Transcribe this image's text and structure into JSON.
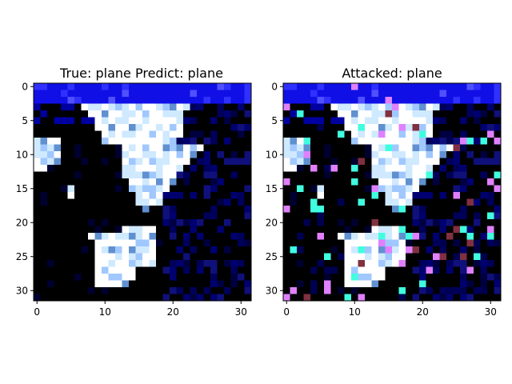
{
  "chart_data": [
    {
      "type": "heatmap",
      "title": "True: plane  Predict: plane",
      "xlabel": "",
      "ylabel": "",
      "xlim": [
        -0.5,
        31.5
      ],
      "ylim": [
        31.5,
        -0.5
      ],
      "xticks": [
        0,
        10,
        20,
        30
      ],
      "yticks": [
        0,
        5,
        10,
        15,
        20,
        25,
        30
      ],
      "grid": false
    },
    {
      "type": "heatmap",
      "title": "Attacked: plane",
      "xlabel": "",
      "ylabel": "",
      "xlim": [
        -0.5,
        31.5
      ],
      "ylim": [
        31.5,
        -0.5
      ],
      "xticks": [
        0,
        10,
        20,
        30
      ],
      "yticks": [
        0,
        5,
        10,
        15,
        20,
        25,
        30
      ],
      "grid": false
    }
  ],
  "colors": {
    "background": "#000000",
    "sky": "#1010e6",
    "white": "#ffffff",
    "light": "#cfe9ff",
    "noise_cyan": "#40ffe0",
    "noise_magenta": "#e080ff",
    "noise_red": "#803040"
  }
}
